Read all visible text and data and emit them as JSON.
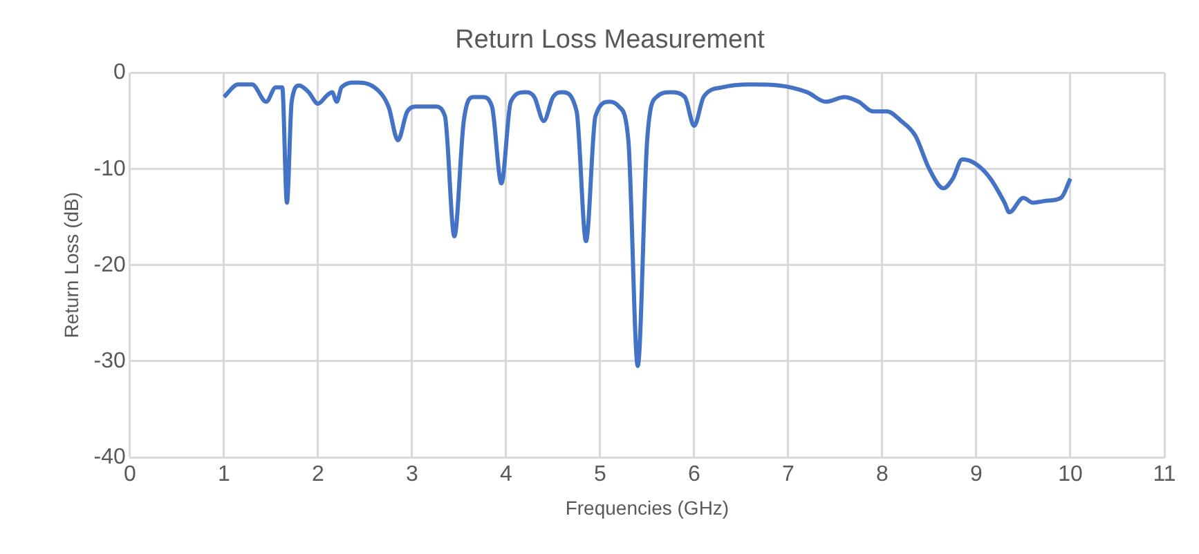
{
  "chart_data": {
    "type": "line",
    "title": "Return Loss Measurement",
    "xlabel": "Frequencies (GHz)",
    "ylabel": "Return Loss (dB)",
    "x": [
      1.0,
      1.15,
      1.3,
      1.45,
      1.55,
      1.62,
      1.67,
      1.72,
      1.8,
      1.9,
      2.0,
      2.1,
      2.15,
      2.2,
      2.25,
      2.4,
      2.6,
      2.75,
      2.85,
      2.95,
      3.05,
      3.25,
      3.35,
      3.45,
      3.55,
      3.65,
      3.75,
      3.85,
      3.95,
      4.05,
      4.2,
      4.3,
      4.4,
      4.5,
      4.6,
      4.75,
      4.85,
      4.95,
      5.1,
      5.2,
      5.3,
      5.4,
      5.5,
      5.6,
      5.75,
      5.9,
      6.0,
      6.1,
      6.3,
      6.6,
      6.9,
      7.2,
      7.4,
      7.6,
      7.75,
      7.9,
      8.05,
      8.2,
      8.35,
      8.5,
      8.65,
      8.75,
      8.85,
      9.0,
      9.15,
      9.3,
      9.35,
      9.5,
      9.6,
      9.75,
      9.9,
      10.0
    ],
    "series": [
      {
        "color": "#4472c4",
        "values": [
          -2.5,
          -1.2,
          -1.2,
          -3,
          -1.5,
          -1.5,
          -13.5,
          -3,
          -1.3,
          -2,
          -3.2,
          -2.3,
          -2,
          -3,
          -1.5,
          -1,
          -1.5,
          -3.5,
          -7,
          -4,
          -3.5,
          -3.5,
          -4.5,
          -17,
          -5,
          -2.5,
          -2.5,
          -3.5,
          -11.5,
          -3,
          -2,
          -2.5,
          -5,
          -2.5,
          -2,
          -4,
          -17.5,
          -4.5,
          -3,
          -3.5,
          -7,
          -30.5,
          -7,
          -2.5,
          -2,
          -2.5,
          -5.5,
          -2.5,
          -1.5,
          -1.2,
          -1.3,
          -2,
          -3,
          -2.5,
          -3,
          -4,
          -4,
          -5,
          -6.5,
          -10,
          -12,
          -11,
          -9,
          -9.5,
          -11,
          -13.5,
          -14.5,
          -13,
          -13.5,
          -13.3,
          -13,
          -11
        ]
      }
    ],
    "xlim": [
      0,
      11
    ],
    "xticks": [
      0,
      1,
      2,
      3,
      4,
      5,
      6,
      7,
      8,
      9,
      10,
      11
    ],
    "ylim": [
      -40,
      0
    ],
    "yticks": [
      -40,
      -30,
      -20,
      -10,
      0
    ],
    "grid": true,
    "legend": false,
    "marker": "none",
    "line_style": "solid"
  }
}
